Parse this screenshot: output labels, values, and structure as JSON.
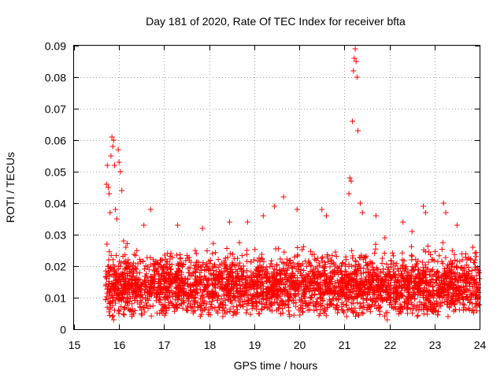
{
  "chart_data": {
    "type": "scatter",
    "title": "Day 181 of 2020, Rate Of TEC Index for receiver bfta",
    "xlabel": "GPS time / hours",
    "ylabel": "ROTI / TECUs",
    "xlim": [
      15,
      24
    ],
    "ylim": [
      0,
      0.09
    ],
    "xticks": [
      "15",
      "16",
      "17",
      "18",
      "19",
      "20",
      "21",
      "22",
      "23",
      "24"
    ],
    "yticks": [
      "0",
      "0.01",
      "0.02",
      "0.03",
      "0.04",
      "0.05",
      "0.06",
      "0.07",
      "0.08",
      "0.09"
    ],
    "grid": true,
    "marker": "plus",
    "color": "#ff0000",
    "series": [
      {
        "name": "ROTI",
        "points": [
          [
            15.72,
            0.046
          ],
          [
            15.74,
            0.052
          ],
          [
            15.76,
            0.045
          ],
          [
            15.78,
            0.043
          ],
          [
            15.8,
            0.037
          ],
          [
            15.82,
            0.055
          ],
          [
            15.84,
            0.061
          ],
          [
            15.86,
            0.058
          ],
          [
            15.88,
            0.06
          ],
          [
            15.9,
            0.052
          ],
          [
            15.92,
            0.038
          ],
          [
            15.95,
            0.035
          ],
          [
            15.98,
            0.057
          ],
          [
            16.0,
            0.053
          ],
          [
            16.03,
            0.05
          ],
          [
            16.06,
            0.044
          ],
          [
            16.1,
            0.028
          ],
          [
            16.15,
            0.026
          ],
          [
            16.2,
            0.022
          ],
          [
            15.73,
            0.027
          ],
          [
            15.77,
            0.022
          ],
          [
            15.85,
            0.004
          ],
          [
            15.88,
            0.003
          ],
          [
            15.9,
            0.006
          ],
          [
            16.7,
            0.038
          ],
          [
            16.55,
            0.033
          ],
          [
            17.3,
            0.033
          ],
          [
            17.85,
            0.032
          ],
          [
            18.45,
            0.034
          ],
          [
            18.85,
            0.034
          ],
          [
            19.2,
            0.036
          ],
          [
            19.45,
            0.039
          ],
          [
            19.65,
            0.042
          ],
          [
            19.95,
            0.038
          ],
          [
            20.5,
            0.038
          ],
          [
            20.6,
            0.036
          ],
          [
            21.12,
            0.048
          ],
          [
            21.15,
            0.047
          ],
          [
            21.1,
            0.043
          ],
          [
            21.18,
            0.066
          ],
          [
            21.2,
            0.082
          ],
          [
            21.22,
            0.086
          ],
          [
            21.24,
            0.089
          ],
          [
            21.26,
            0.085
          ],
          [
            21.28,
            0.08
          ],
          [
            21.3,
            0.063
          ],
          [
            21.35,
            0.04
          ],
          [
            21.4,
            0.037
          ],
          [
            21.7,
            0.036
          ],
          [
            21.9,
            0.029
          ],
          [
            22.3,
            0.034
          ],
          [
            22.5,
            0.031
          ],
          [
            22.75,
            0.039
          ],
          [
            22.8,
            0.037
          ],
          [
            23.2,
            0.04
          ],
          [
            23.25,
            0.037
          ],
          [
            23.5,
            0.033
          ],
          [
            23.85,
            0.026
          ],
          [
            16.9,
            0.005
          ],
          [
            17.5,
            0.006
          ],
          [
            18.2,
            0.007
          ],
          [
            19.5,
            0.006
          ],
          [
            20.55,
            0.006
          ],
          [
            21.05,
            0.004
          ],
          [
            21.95,
            0.003
          ],
          [
            22.4,
            0.005
          ],
          [
            23.3,
            0.004
          ],
          [
            23.9,
            0.007
          ]
        ],
        "cloud": {
          "x_range": [
            15.7,
            24.0
          ],
          "y_range": [
            0.004,
            0.03
          ],
          "center": 0.014,
          "count": 3200
        }
      }
    ]
  }
}
